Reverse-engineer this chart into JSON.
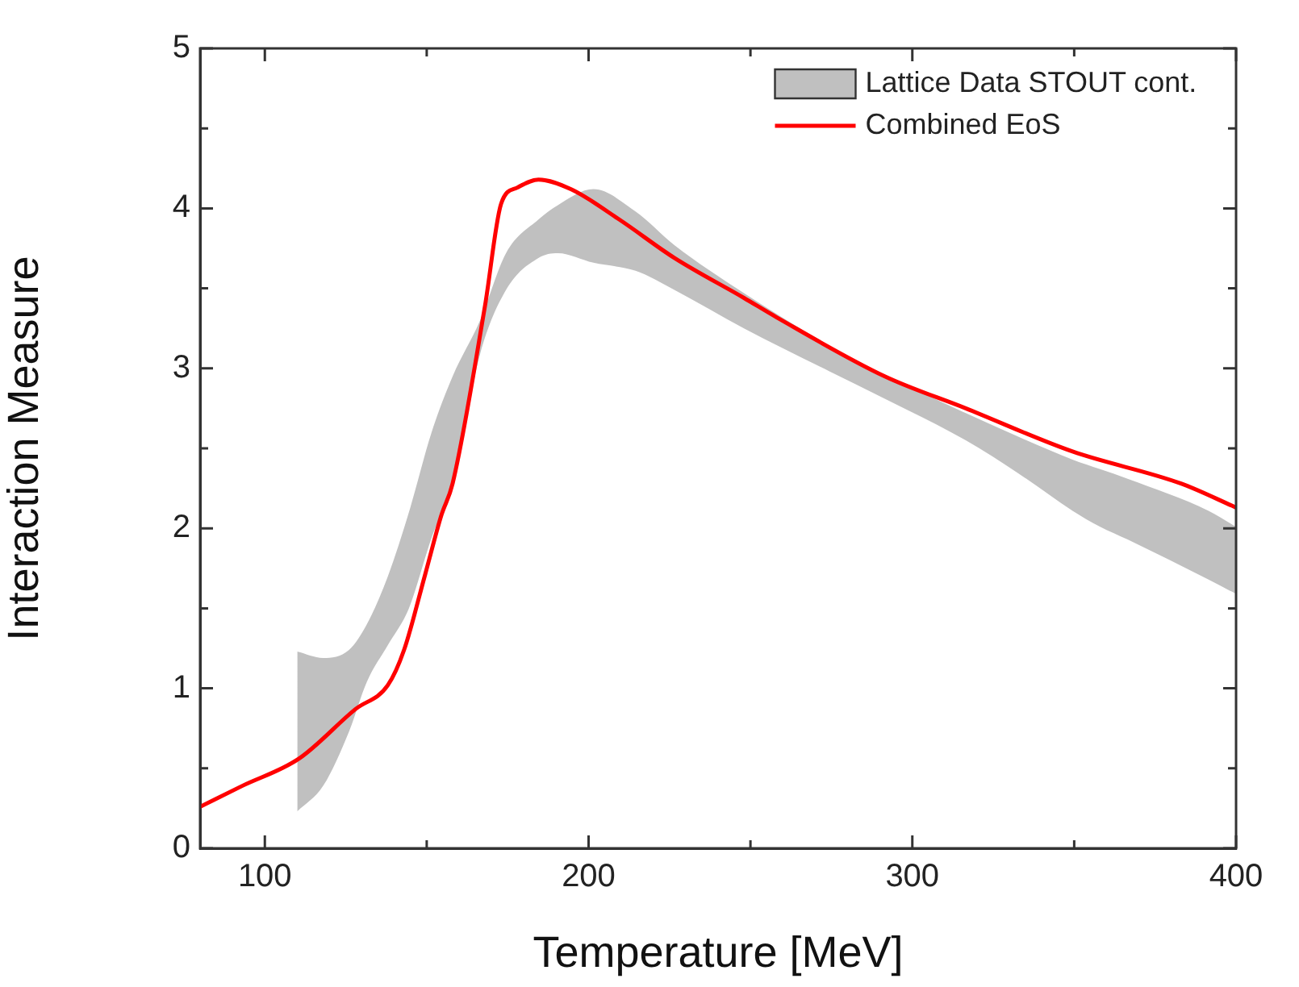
{
  "chart_data": {
    "type": "line",
    "xlabel": "Temperature [MeV]",
    "ylabel": "Interaction Measure",
    "xlim": [
      80,
      400
    ],
    "ylim": [
      0,
      5
    ],
    "xticks": [
      100,
      {
        "value": 150,
        "label": null
      },
      200,
      {
        "value": 250,
        "label": null
      },
      300,
      {
        "value": 350,
        "label": null
      },
      400
    ],
    "yticks": [
      0,
      {
        "value": 0.5,
        "label": null
      },
      1,
      {
        "value": 1.5,
        "label": null
      },
      2,
      {
        "value": 2.5,
        "label": null
      },
      3,
      {
        "value": 3.5,
        "label": null
      },
      4,
      {
        "value": 4.5,
        "label": null
      },
      5
    ],
    "grid": false,
    "legend": "top right",
    "marker": "none",
    "line_style": "solid",
    "series": [
      {
        "name": "Lattice Data STOUT cont.",
        "type": "area",
        "color": "#c0c0c0",
        "x": [
          110,
          118,
          126,
          131.5,
          138,
          144.5,
          151.5,
          158,
          166.5,
          174.5,
          184.5,
          190.5,
          201.5,
          214.5,
          226.5,
          248,
          274.5,
          291.5,
          316.5,
          333,
          349.5,
          358,
          366.5,
          391.5,
          400
        ],
        "values": [
          null,
          null,
          null,
          null,
          null,
          null,
          null,
          null,
          null,
          null,
          null,
          null,
          null,
          null,
          null,
          null,
          null,
          null,
          null,
          null,
          null,
          null,
          null,
          null,
          null
        ],
        "upper": [
          1.23,
          1.19,
          1.24,
          1.4,
          1.7,
          2.1,
          2.6,
          2.95,
          3.3,
          3.72,
          3.93,
          4.02,
          4.12,
          3.98,
          3.77,
          3.47,
          3.14,
          2.96,
          2.72,
          2.57,
          2.43,
          2.37,
          2.31,
          2.11,
          2.01
        ],
        "lower": [
          0.23,
          0.39,
          0.73,
          1.04,
          1.27,
          1.5,
          1.94,
          2.28,
          3.09,
          3.49,
          3.69,
          3.72,
          3.66,
          3.61,
          3.49,
          3.25,
          2.98,
          2.81,
          2.55,
          2.34,
          2.11,
          2.01,
          1.93,
          1.68,
          1.59
        ]
      },
      {
        "name": "Combined EoS",
        "type": "line",
        "color": "#ff0000",
        "x": [
          80,
          93,
          110.5,
          128,
          138,
          143,
          149.5,
          154.5,
          158,
          168,
          173,
          178,
          184.5,
          194.5,
          209.5,
          226.5,
          248,
          258,
          291.5,
          316.5,
          349.5,
          383,
          400
        ],
        "values": [
          0.26,
          0.39,
          0.56,
          0.87,
          1.02,
          1.24,
          1.71,
          2.08,
          2.28,
          3.39,
          4.03,
          4.13,
          4.18,
          4.12,
          3.93,
          3.69,
          3.44,
          3.32,
          2.95,
          2.75,
          2.48,
          2.28,
          2.13
        ]
      }
    ]
  }
}
